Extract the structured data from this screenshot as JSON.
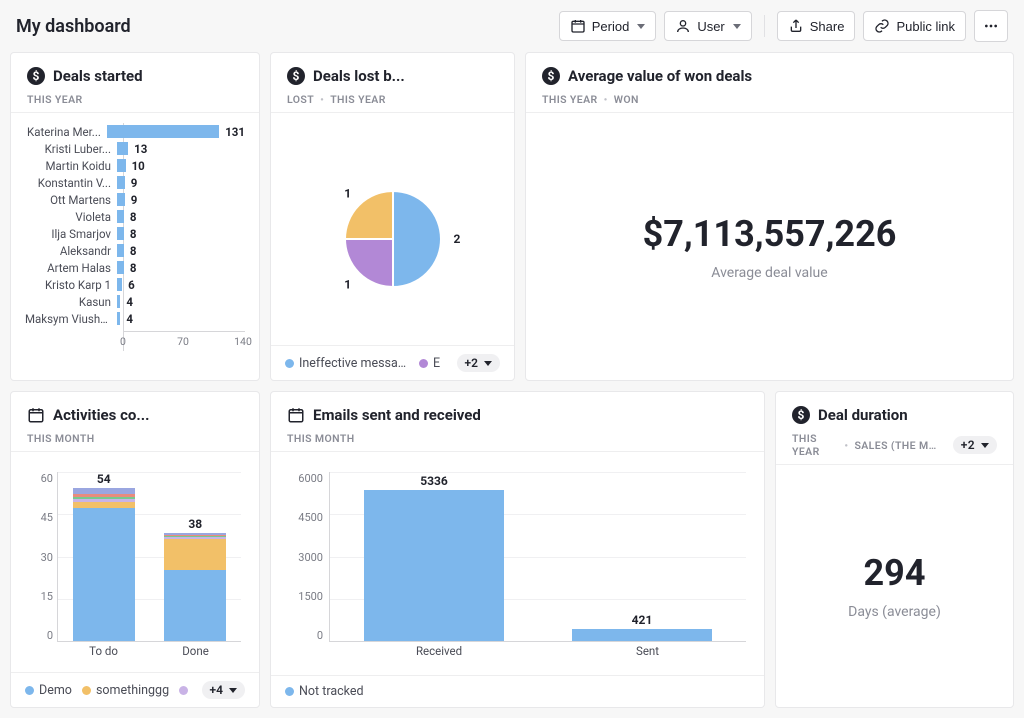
{
  "header": {
    "title": "My dashboard",
    "period_label": "Period",
    "user_label": "User",
    "share_label": "Share",
    "public_link_label": "Public link"
  },
  "palette": {
    "blue": "#7db7ec",
    "orange": "#f2c068",
    "purple": "#b288d6",
    "green": "#77c98f",
    "red": "#e88b7d",
    "lilac": "#c9b3e6",
    "gray_grid": "#f0f0f2",
    "axis": "#d6d6d9",
    "text_muted": "#8a8c96"
  },
  "card_deals_started": {
    "title": "Deals started",
    "sub": [
      "THIS YEAR"
    ],
    "type": "hbar",
    "max": 140,
    "x_ticks": [
      0,
      70,
      140
    ],
    "bar_color": "#7db7ec",
    "rows": [
      {
        "label": "Katerina Mer...",
        "value": 131
      },
      {
        "label": "Kristi Luber...",
        "value": 13
      },
      {
        "label": "Martin Koidu",
        "value": 10
      },
      {
        "label": "Konstantin V...",
        "value": 9
      },
      {
        "label": "Ott Martens",
        "value": 9
      },
      {
        "label": "Violeta",
        "value": 8
      },
      {
        "label": "Ilja Smarjov",
        "value": 8
      },
      {
        "label": "Aleksandr",
        "value": 8
      },
      {
        "label": "Artem Halas",
        "value": 8
      },
      {
        "label": "Kristo Karp 1",
        "value": 6
      },
      {
        "label": "Kasun",
        "value": 4
      },
      {
        "label": "Maksym Viushkin",
        "value": 4
      }
    ]
  },
  "card_deals_lost": {
    "title": "Deals lost b...",
    "sub": [
      "LOST",
      "THIS YEAR"
    ],
    "type": "pie",
    "slices": [
      {
        "label": "Ineffective messaging",
        "value": 2,
        "color": "#7db7ec"
      },
      {
        "label": "E",
        "value": 1,
        "color": "#b288d6"
      },
      {
        "label": "",
        "value": 1,
        "color": "#f2c068"
      }
    ],
    "legend_overflow": "+2"
  },
  "card_avg_value": {
    "title": "Average value of won deals",
    "sub": [
      "THIS YEAR",
      "WON"
    ],
    "value": "$7,113,557,226",
    "subtitle": "Average deal value"
  },
  "card_activities": {
    "title": "Activities co...",
    "sub": [
      "THIS MONTH"
    ],
    "type": "stacked-bar",
    "y_max": 60,
    "y_ticks": [
      0,
      15,
      30,
      45,
      60
    ],
    "categories": [
      "To do",
      "Done"
    ],
    "series_colors": [
      "#7db7ec",
      "#f2c068",
      "#c9b3e6",
      "#77c98f",
      "#e88b7d",
      "#9aa6e0"
    ],
    "bars": [
      {
        "total": 54,
        "segments": [
          47,
          2,
          1,
          1,
          1,
          2
        ]
      },
      {
        "total": 38,
        "segments": [
          25,
          11,
          0.7,
          0.5,
          0.4,
          0.4
        ]
      }
    ],
    "legend": [
      {
        "label": "Demo",
        "color": "#7db7ec"
      },
      {
        "label": "somethinggg",
        "color": "#f2c068"
      },
      {
        "label": "",
        "color": "#c9b3e6"
      }
    ],
    "legend_overflow": "+4"
  },
  "card_emails": {
    "title": "Emails sent and received",
    "sub": [
      "THIS MONTH"
    ],
    "type": "bar",
    "y_max": 6000,
    "y_ticks": [
      0,
      1500,
      3000,
      4500,
      6000
    ],
    "categories": [
      "Received",
      "Sent"
    ],
    "values": [
      5336,
      421
    ],
    "bar_color": "#7db7ec",
    "legend": [
      {
        "label": "Not tracked",
        "color": "#7db7ec"
      }
    ]
  },
  "card_deal_duration": {
    "title": "Deal duration",
    "sub": [
      "THIS YEAR",
      "SALES (THE MAIN O"
    ],
    "sub_overflow": "+2",
    "value": "294",
    "subtitle": "Days (average)"
  }
}
